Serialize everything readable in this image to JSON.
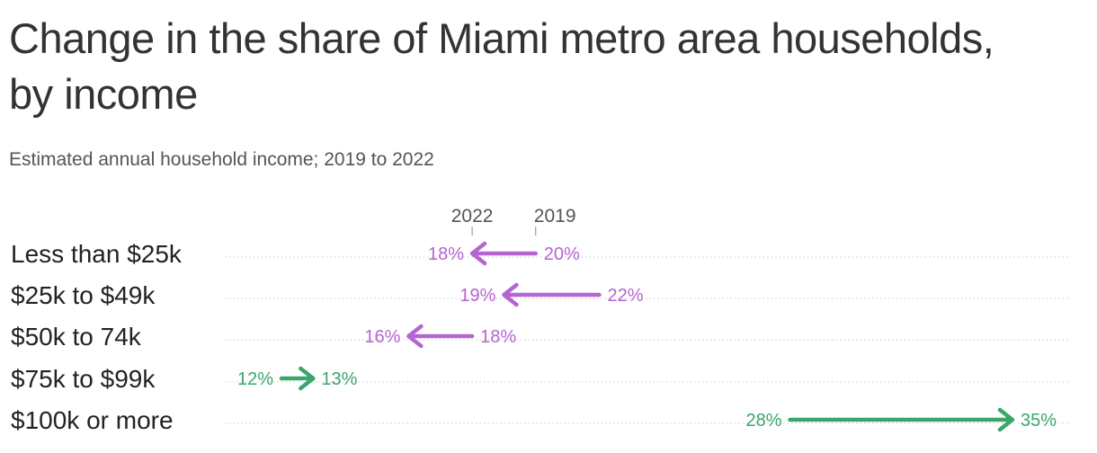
{
  "title": "Change in the share of Miami metro area households, by income",
  "subtitle": "Estimated annual household income; 2019 to 2022",
  "colors": {
    "decrease": "#b565cf",
    "increase": "#3aa66b",
    "gridline": "#c8c8c8"
  },
  "chart_data": {
    "type": "arrow",
    "title": "Change in the share of Miami metro area households, by income",
    "subtitle": "Estimated annual household income; 2019 to 2022",
    "legend": {
      "start": "2019",
      "end": "2022",
      "placement": "top, above first row"
    },
    "grid": false,
    "categories": [
      "Less than $25k",
      "$25k to $49k",
      "$50k to 74k",
      "$75k to $99k",
      "$100k or more"
    ],
    "series": [
      {
        "name": "2019",
        "values": [
          20,
          22,
          18,
          12,
          28
        ]
      },
      {
        "name": "2022",
        "values": [
          18,
          19,
          16,
          13,
          35
        ]
      }
    ],
    "labels_2019": [
      "20%",
      "22%",
      "18%",
      "12%",
      "28%"
    ],
    "labels_2022": [
      "18%",
      "19%",
      "16%",
      "13%",
      "35%"
    ]
  }
}
